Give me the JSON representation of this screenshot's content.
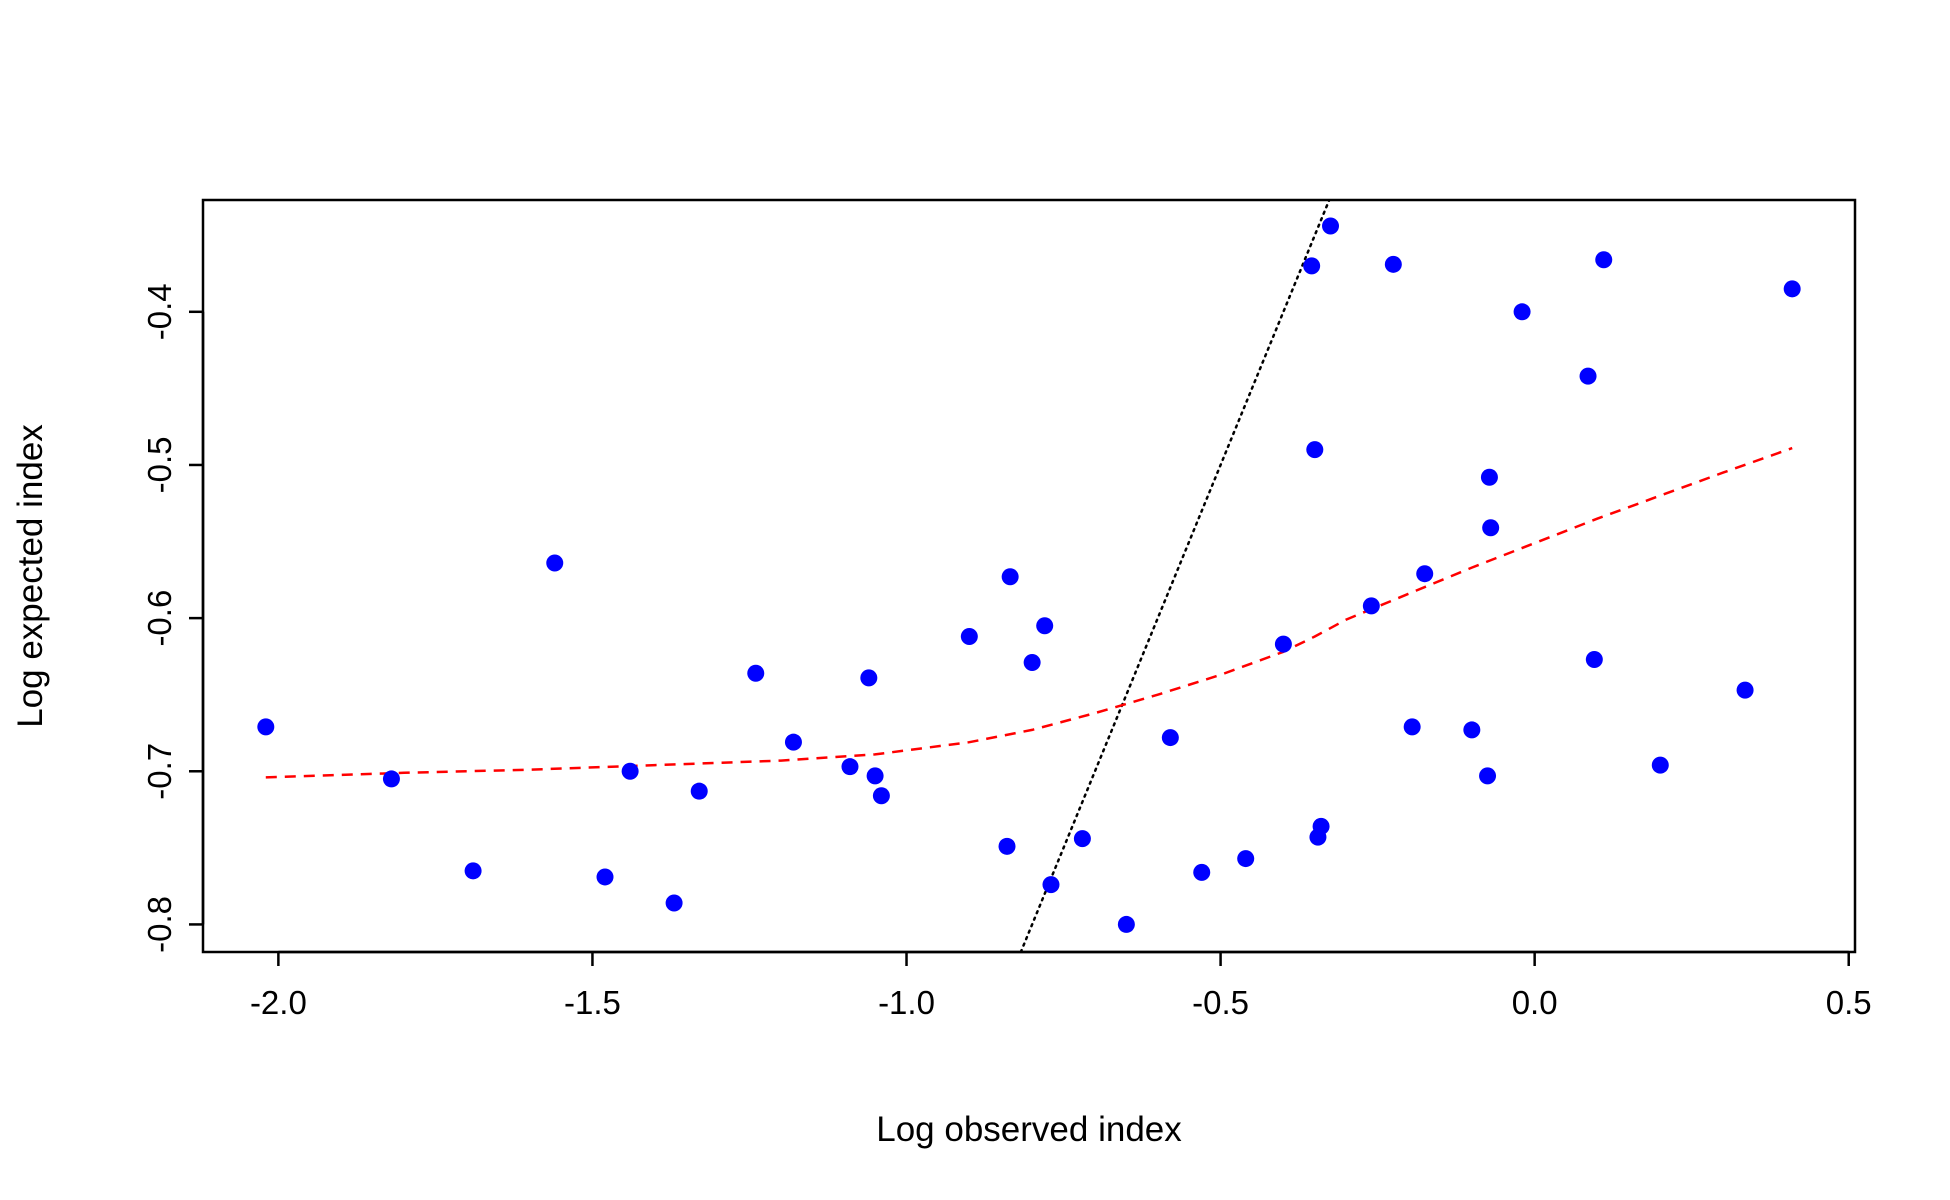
{
  "chart_data": {
    "type": "scatter",
    "title": "",
    "xlabel": "Log observed index",
    "ylabel": "Log expected index",
    "xlim": [
      -2.12,
      0.51
    ],
    "ylim": [
      -0.818,
      -0.327
    ],
    "x_ticks": [
      -2.0,
      -1.5,
      -1.0,
      -0.5,
      0.0,
      0.5
    ],
    "x_tick_labels": [
      "-2.0",
      "-1.5",
      "-1.0",
      "-0.5",
      "0.0",
      "0.5"
    ],
    "y_ticks": [
      -0.8,
      -0.7,
      -0.6,
      -0.5,
      -0.4
    ],
    "y_tick_labels": [
      "-0.8",
      "-0.7",
      "-0.6",
      "-0.5",
      "-0.4"
    ],
    "grid": false,
    "legend": "none",
    "colors": {
      "points": "#0000ff",
      "smooth": "#ff0000",
      "reference": "#000000"
    },
    "points": [
      [
        -2.02,
        -0.671
      ],
      [
        -1.82,
        -0.705
      ],
      [
        -1.69,
        -0.765
      ],
      [
        -1.56,
        -0.564
      ],
      [
        -1.48,
        -0.769
      ],
      [
        -1.44,
        -0.7
      ],
      [
        -1.37,
        -0.786
      ],
      [
        -1.33,
        -0.713
      ],
      [
        -1.24,
        -0.636
      ],
      [
        -1.18,
        -0.681
      ],
      [
        -1.09,
        -0.697
      ],
      [
        -1.06,
        -0.639
      ],
      [
        -1.05,
        -0.703
      ],
      [
        -1.04,
        -0.716
      ],
      [
        -0.9,
        -0.612
      ],
      [
        -0.84,
        -0.749
      ],
      [
        -0.835,
        -0.573
      ],
      [
        -0.8,
        -0.629
      ],
      [
        -0.78,
        -0.605
      ],
      [
        -0.77,
        -0.774
      ],
      [
        -0.72,
        -0.744
      ],
      [
        -0.65,
        -0.8
      ],
      [
        -0.58,
        -0.678
      ],
      [
        -0.53,
        -0.766
      ],
      [
        -0.46,
        -0.757
      ],
      [
        -0.4,
        -0.617
      ],
      [
        -0.355,
        -0.37
      ],
      [
        -0.35,
        -0.49
      ],
      [
        -0.345,
        -0.743
      ],
      [
        -0.34,
        -0.736
      ],
      [
        -0.325,
        -0.344
      ],
      [
        -0.26,
        -0.592
      ],
      [
        -0.225,
        -0.369
      ],
      [
        -0.195,
        -0.671
      ],
      [
        -0.175,
        -0.571
      ],
      [
        -0.1,
        -0.673
      ],
      [
        -0.075,
        -0.703
      ],
      [
        -0.072,
        -0.508
      ],
      [
        -0.07,
        -0.541
      ],
      [
        -0.02,
        -0.4
      ],
      [
        0.085,
        -0.442
      ],
      [
        0.095,
        -0.627
      ],
      [
        0.11,
        -0.366
      ],
      [
        0.2,
        -0.696
      ],
      [
        0.335,
        -0.647
      ],
      [
        0.41,
        -0.385
      ]
    ],
    "smooth_line": [
      [
        -2.02,
        -0.704
      ],
      [
        -1.8,
        -0.701
      ],
      [
        -1.6,
        -0.699
      ],
      [
        -1.4,
        -0.696
      ],
      [
        -1.2,
        -0.693
      ],
      [
        -1.05,
        -0.689
      ],
      [
        -0.9,
        -0.681
      ],
      [
        -0.8,
        -0.673
      ],
      [
        -0.7,
        -0.662
      ],
      [
        -0.6,
        -0.65
      ],
      [
        -0.5,
        -0.637
      ],
      [
        -0.4,
        -0.622
      ],
      [
        -0.35,
        -0.612
      ],
      [
        -0.3,
        -0.601
      ],
      [
        -0.2,
        -0.584
      ],
      [
        -0.1,
        -0.567
      ],
      [
        0.0,
        -0.551
      ],
      [
        0.1,
        -0.535
      ],
      [
        0.2,
        -0.52
      ],
      [
        0.3,
        -0.505
      ],
      [
        0.41,
        -0.489
      ]
    ],
    "reference_line": [
      [
        -0.818,
        -0.818
      ],
      [
        -0.327,
        -0.327
      ]
    ]
  }
}
